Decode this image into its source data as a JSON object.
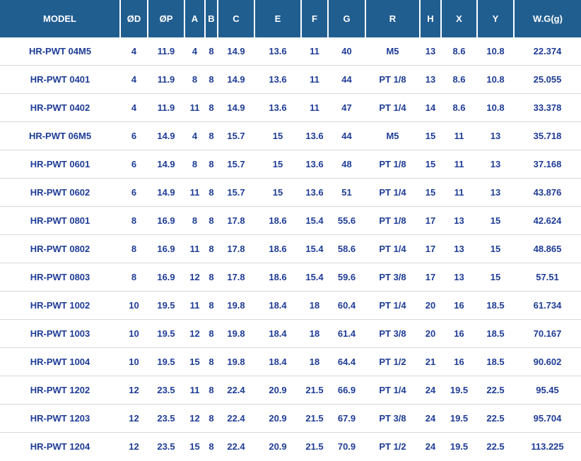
{
  "chart_data": {
    "type": "table",
    "columns": [
      "MODEL",
      "ØD",
      "ØP",
      "A",
      "B",
      "C",
      "E",
      "F",
      "G",
      "R",
      "H",
      "X",
      "Y",
      "W.G(g)"
    ],
    "rows": [
      [
        "HR-PWT 04M5",
        "4",
        "11.9",
        "4",
        "8",
        "14.9",
        "13.6",
        "11",
        "40",
        "M5",
        "13",
        "8.6",
        "10.8",
        "22.374"
      ],
      [
        "HR-PWT 0401",
        "4",
        "11.9",
        "8",
        "8",
        "14.9",
        "13.6",
        "11",
        "44",
        "PT 1/8",
        "13",
        "8.6",
        "10.8",
        "25.055"
      ],
      [
        "HR-PWT 0402",
        "4",
        "11.9",
        "11",
        "8",
        "14.9",
        "13.6",
        "11",
        "47",
        "PT 1/4",
        "14",
        "8.6",
        "10.8",
        "33.378"
      ],
      [
        "HR-PWT 06M5",
        "6",
        "14.9",
        "4",
        "8",
        "15.7",
        "15",
        "13.6",
        "44",
        "M5",
        "15",
        "11",
        "13",
        "35.718"
      ],
      [
        "HR-PWT 0601",
        "6",
        "14.9",
        "8",
        "8",
        "15.7",
        "15",
        "13.6",
        "48",
        "PT 1/8",
        "15",
        "11",
        "13",
        "37.168"
      ],
      [
        "HR-PWT 0602",
        "6",
        "14.9",
        "11",
        "8",
        "15.7",
        "15",
        "13.6",
        "51",
        "PT 1/4",
        "15",
        "11",
        "13",
        "43.876"
      ],
      [
        "HR-PWT 0801",
        "8",
        "16.9",
        "8",
        "8",
        "17.8",
        "18.6",
        "15.4",
        "55.6",
        "PT 1/8",
        "17",
        "13",
        "15",
        "42.624"
      ],
      [
        "HR-PWT 0802",
        "8",
        "16.9",
        "11",
        "8",
        "17.8",
        "18.6",
        "15.4",
        "58.6",
        "PT 1/4",
        "17",
        "13",
        "15",
        "48.865"
      ],
      [
        "HR-PWT 0803",
        "8",
        "16.9",
        "12",
        "8",
        "17.8",
        "18.6",
        "15.4",
        "59.6",
        "PT 3/8",
        "17",
        "13",
        "15",
        "57.51"
      ],
      [
        "HR-PWT 1002",
        "10",
        "19.5",
        "11",
        "8",
        "19.8",
        "18.4",
        "18",
        "60.4",
        "PT 1/4",
        "20",
        "16",
        "18.5",
        "61.734"
      ],
      [
        "HR-PWT 1003",
        "10",
        "19.5",
        "12",
        "8",
        "19.8",
        "18.4",
        "18",
        "61.4",
        "PT 3/8",
        "20",
        "16",
        "18.5",
        "70.167"
      ],
      [
        "HR-PWT 1004",
        "10",
        "19.5",
        "15",
        "8",
        "19.8",
        "18.4",
        "18",
        "64.4",
        "PT 1/2",
        "21",
        "16",
        "18.5",
        "90.602"
      ],
      [
        "HR-PWT 1202",
        "12",
        "23.5",
        "11",
        "8",
        "22.4",
        "20.9",
        "21.5",
        "66.9",
        "PT 1/4",
        "24",
        "19.5",
        "22.5",
        "95.45"
      ],
      [
        "HR-PWT 1203",
        "12",
        "23.5",
        "12",
        "8",
        "22.4",
        "20.9",
        "21.5",
        "67.9",
        "PT 3/8",
        "24",
        "19.5",
        "22.5",
        "95.704"
      ],
      [
        "HR-PWT 1204",
        "12",
        "23.5",
        "15",
        "8",
        "22.4",
        "20.9",
        "21.5",
        "70.9",
        "PT 1/2",
        "24",
        "19.5",
        "22.5",
        "113.225"
      ]
    ]
  },
  "colors": {
    "header_bg": "#215e90",
    "header_text": "#ffffff",
    "cell_text": "#1e3c96",
    "row_divider": "#d5d9de",
    "header_divider": "#ffffff",
    "row_bg": "#ffffff"
  }
}
